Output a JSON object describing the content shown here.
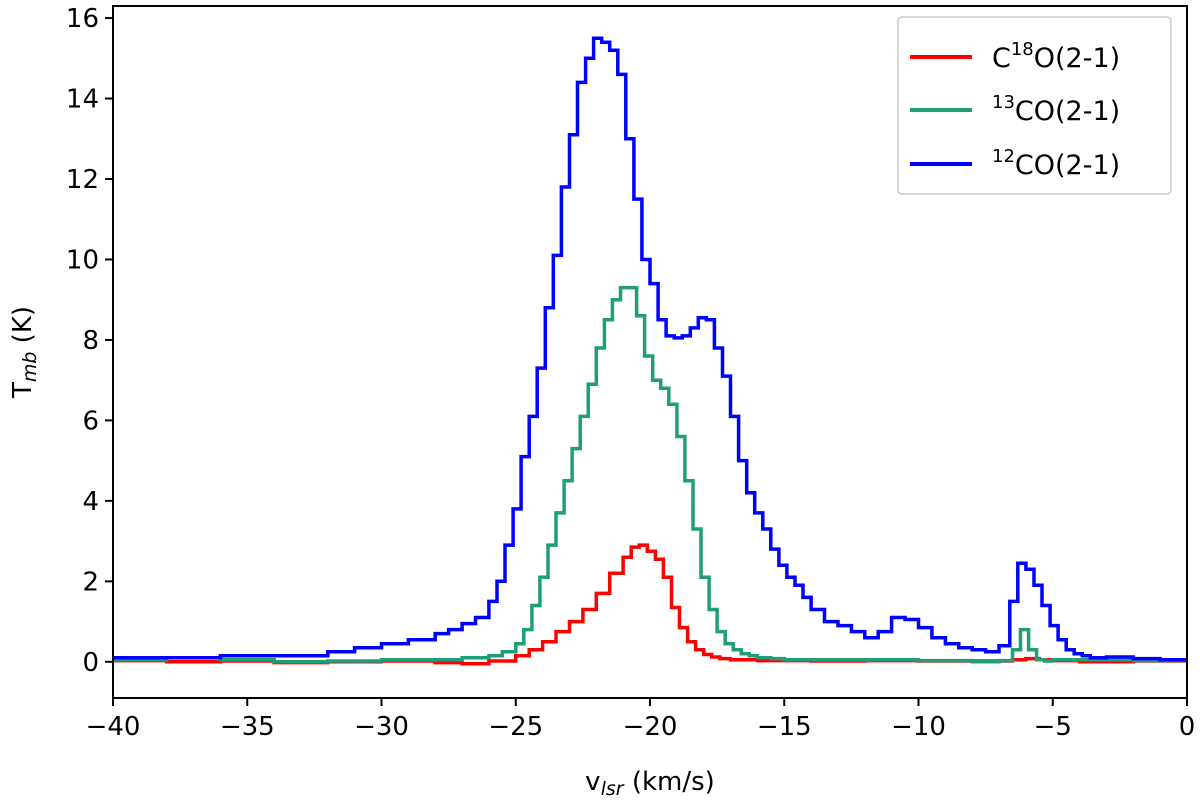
{
  "chart_data": {
    "type": "line",
    "step": true,
    "xlabel_main": "v",
    "xlabel_sub": "lsr",
    "xlabel_rest": " (km/s)",
    "ylabel_main": "T",
    "ylabel_sub": "mb",
    "ylabel_rest": " (K)",
    "xlim": [
      -40,
      0
    ],
    "ylim": [
      -0.9,
      16.3
    ],
    "xticks": [
      -40,
      -35,
      -30,
      -25,
      -20,
      -15,
      -10,
      -5,
      0
    ],
    "xtick_labels": [
      "−40",
      "−35",
      "−30",
      "−25",
      "−20",
      "−15",
      "−10",
      "−5",
      "0"
    ],
    "yticks": [
      0,
      2,
      4,
      6,
      8,
      10,
      12,
      14,
      16
    ],
    "ytick_labels": [
      "0",
      "2",
      "4",
      "6",
      "8",
      "10",
      "12",
      "14",
      "16"
    ],
    "grid": false,
    "legend_position": "top-right",
    "series": [
      {
        "name": "C18O(2-1)",
        "label_pre": "C",
        "label_sup": "18",
        "label_post": "O(2-1)",
        "color": "#ff0000",
        "x": [
          -40.0,
          -38.0,
          -36.0,
          -34.0,
          -32.0,
          -30.0,
          -28.0,
          -27.0,
          -26.0,
          -25.0,
          -24.5,
          -24.0,
          -23.5,
          -23.0,
          -22.5,
          -22.0,
          -21.5,
          -21.0,
          -20.7,
          -20.4,
          -20.1,
          -19.8,
          -19.5,
          -19.2,
          -18.9,
          -18.6,
          -18.3,
          -18.0,
          -17.7,
          -17.4,
          -17.0,
          -16.0,
          -14.0,
          -12.0,
          -10.0,
          -8.0,
          -6.5,
          -6.0,
          -5.5,
          -5.0,
          -4.0,
          -2.0,
          0.0
        ],
        "y": [
          0.03,
          0.0,
          0.02,
          -0.02,
          0.0,
          0.02,
          -0.02,
          -0.05,
          0.02,
          0.15,
          0.3,
          0.5,
          0.75,
          1.0,
          1.3,
          1.7,
          2.2,
          2.6,
          2.85,
          2.9,
          2.75,
          2.55,
          2.1,
          1.35,
          0.85,
          0.5,
          0.3,
          0.18,
          0.12,
          0.08,
          0.05,
          0.03,
          0.02,
          0.03,
          0.02,
          0.02,
          0.05,
          0.08,
          0.05,
          0.03,
          0.0,
          0.02,
          0.0
        ]
      },
      {
        "name": "13CO(2-1)",
        "label_pre": "",
        "label_sup": "13",
        "label_post": "CO(2-1)",
        "color": "#1f9e78",
        "x": [
          -40.0,
          -38.0,
          -36.0,
          -34.0,
          -32.0,
          -30.0,
          -28.0,
          -27.0,
          -26.0,
          -25.5,
          -25.0,
          -24.7,
          -24.4,
          -24.1,
          -23.8,
          -23.5,
          -23.2,
          -22.9,
          -22.6,
          -22.3,
          -22.0,
          -21.7,
          -21.4,
          -21.1,
          -20.8,
          -20.5,
          -20.2,
          -19.9,
          -19.6,
          -19.3,
          -19.0,
          -18.7,
          -18.4,
          -18.1,
          -17.8,
          -17.5,
          -17.2,
          -16.9,
          -16.6,
          -16.3,
          -16.0,
          -15.5,
          -15.0,
          -14.0,
          -12.0,
          -10.0,
          -8.0,
          -7.0,
          -6.5,
          -6.2,
          -5.9,
          -5.6,
          -5.3,
          -5.0,
          -4.0,
          -2.0,
          0.0
        ],
        "y": [
          0.05,
          0.1,
          0.05,
          0.0,
          0.02,
          0.05,
          0.05,
          0.1,
          0.15,
          0.25,
          0.45,
          0.8,
          1.4,
          2.1,
          2.9,
          3.7,
          4.5,
          5.3,
          6.1,
          6.9,
          7.8,
          8.5,
          9.0,
          9.3,
          9.3,
          8.6,
          7.6,
          7.0,
          6.8,
          6.4,
          5.6,
          4.5,
          3.3,
          2.1,
          1.3,
          0.75,
          0.45,
          0.3,
          0.2,
          0.15,
          0.1,
          0.08,
          0.05,
          0.05,
          0.05,
          0.03,
          0.0,
          0.03,
          0.3,
          0.8,
          0.3,
          0.05,
          0.02,
          0.05,
          0.05,
          0.03,
          0.0
        ]
      },
      {
        "name": "12CO(2-1)",
        "label_pre": "",
        "label_sup": "12",
        "label_post": "CO(2-1)",
        "color": "#0000ff",
        "x": [
          -40.0,
          -38.0,
          -36.0,
          -34.0,
          -32.0,
          -31.0,
          -30.0,
          -29.0,
          -28.0,
          -27.5,
          -27.0,
          -26.5,
          -26.0,
          -25.7,
          -25.4,
          -25.1,
          -24.8,
          -24.5,
          -24.2,
          -23.9,
          -23.6,
          -23.3,
          -23.0,
          -22.7,
          -22.4,
          -22.1,
          -21.8,
          -21.5,
          -21.2,
          -20.9,
          -20.6,
          -20.3,
          -20.0,
          -19.7,
          -19.4,
          -19.1,
          -18.8,
          -18.5,
          -18.2,
          -17.9,
          -17.6,
          -17.3,
          -17.0,
          -16.7,
          -16.4,
          -16.1,
          -15.8,
          -15.5,
          -15.2,
          -14.9,
          -14.6,
          -14.3,
          -14.0,
          -13.5,
          -13.0,
          -12.5,
          -12.0,
          -11.5,
          -11.0,
          -10.5,
          -10.0,
          -9.5,
          -9.0,
          -8.5,
          -8.0,
          -7.5,
          -7.0,
          -6.6,
          -6.3,
          -6.0,
          -5.7,
          -5.4,
          -5.1,
          -4.8,
          -4.5,
          -4.2,
          -3.9,
          -3.6,
          -3.0,
          -2.0,
          -1.0,
          0.0
        ],
        "y": [
          0.1,
          0.1,
          0.15,
          0.15,
          0.25,
          0.35,
          0.45,
          0.55,
          0.7,
          0.8,
          0.95,
          1.1,
          1.5,
          2.0,
          2.9,
          3.8,
          5.1,
          6.1,
          7.3,
          8.8,
          10.1,
          11.8,
          13.1,
          14.4,
          15.0,
          15.5,
          15.4,
          15.2,
          14.6,
          13.0,
          11.5,
          10.0,
          9.4,
          8.5,
          8.1,
          8.05,
          8.1,
          8.3,
          8.55,
          8.5,
          7.8,
          7.1,
          6.1,
          5.0,
          4.2,
          3.7,
          3.3,
          2.8,
          2.4,
          2.1,
          1.9,
          1.6,
          1.3,
          1.0,
          0.9,
          0.75,
          0.6,
          0.75,
          1.1,
          1.05,
          0.85,
          0.6,
          0.45,
          0.35,
          0.3,
          0.25,
          0.4,
          1.5,
          2.45,
          2.3,
          1.9,
          1.4,
          0.9,
          0.55,
          0.3,
          0.2,
          0.15,
          0.1,
          0.12,
          0.08,
          0.05,
          0.05
        ]
      }
    ]
  }
}
